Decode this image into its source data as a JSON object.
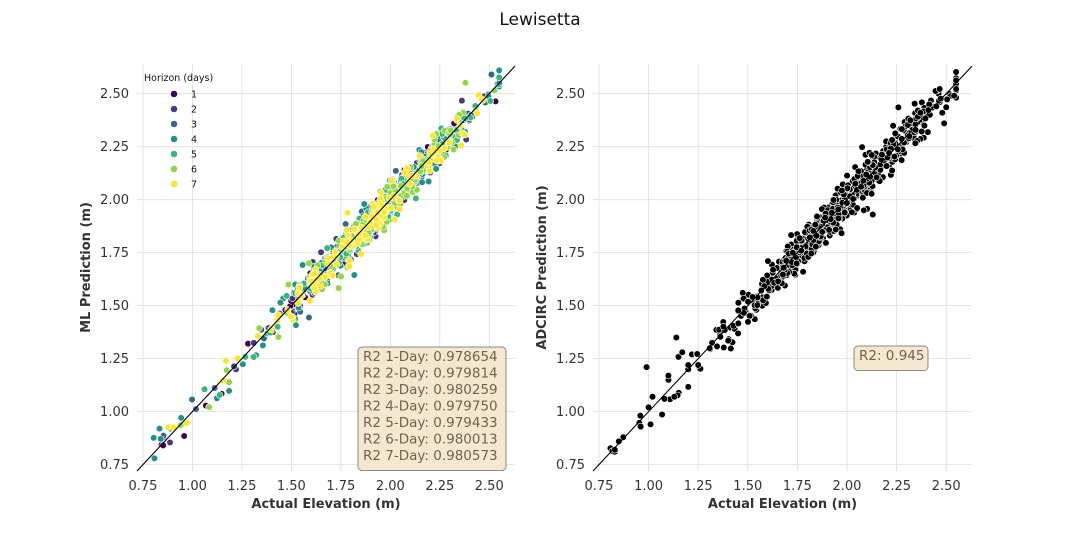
{
  "figure": {
    "title": "Lewisetta"
  },
  "chart_data": [
    {
      "type": "scatter",
      "title": "",
      "xlabel": "Actual Elevation (m)",
      "ylabel": "ML Prediction (m)",
      "xlim": [
        0.72,
        2.63
      ],
      "ylim": [
        0.72,
        2.64
      ],
      "xticks": [
        "0.75",
        "1.00",
        "1.25",
        "1.50",
        "1.75",
        "2.00",
        "2.25",
        "2.50"
      ],
      "yticks": [
        "0.75",
        "1.00",
        "1.25",
        "1.50",
        "1.75",
        "2.00",
        "2.25",
        "2.50"
      ],
      "grid": true,
      "reference_line": "y = x",
      "legend": {
        "title": "Horizon (days)",
        "placement": "top-left",
        "entries": [
          "1",
          "2",
          "3",
          "4",
          "5",
          "6",
          "7"
        ]
      },
      "series": [
        {
          "name": "1",
          "color": "#440154",
          "sigma": 0.035
        },
        {
          "name": "2",
          "color": "#443983",
          "sigma": 0.04
        },
        {
          "name": "3",
          "color": "#31688e",
          "sigma": 0.04
        },
        {
          "name": "4",
          "color": "#21918c",
          "sigma": 0.045
        },
        {
          "name": "5",
          "color": "#35b779",
          "sigma": 0.045
        },
        {
          "name": "6",
          "color": "#90d743",
          "sigma": 0.05
        },
        {
          "name": "7",
          "color": "#fde725",
          "sigma": 0.05
        }
      ],
      "annotation": {
        "placement": "bottom-right",
        "lines": [
          "R2 1-Day: 0.978654",
          "R2 2-Day: 0.979814",
          "R2 3-Day: 0.980259",
          "R2 4-Day: 0.979750",
          "R2 5-Day: 0.979433",
          "R2 6-Day: 0.980013",
          "R2 7-Day: 0.980573"
        ]
      }
    },
    {
      "type": "scatter",
      "title": "",
      "xlabel": "Actual Elevation (m)",
      "ylabel": "ADCIRC Prediction (m)",
      "xlim": [
        0.72,
        2.63
      ],
      "ylim": [
        0.72,
        2.64
      ],
      "xticks": [
        "0.75",
        "1.00",
        "1.25",
        "1.50",
        "1.75",
        "2.00",
        "2.25",
        "2.50"
      ],
      "yticks": [
        "0.75",
        "1.00",
        "1.25",
        "1.50",
        "1.75",
        "2.00",
        "2.25",
        "2.50"
      ],
      "grid": true,
      "reference_line": "y = x",
      "series": [
        {
          "name": "",
          "color": "#000000",
          "sigma": 0.045
        }
      ],
      "outliers": [
        [
          0.83,
          0.82
        ],
        [
          0.85,
          0.86
        ],
        [
          0.96,
          0.93
        ],
        [
          0.99,
          1.21
        ],
        [
          1.0,
          1.02
        ],
        [
          1.01,
          0.94
        ],
        [
          1.02,
          1.07
        ],
        [
          1.08,
          1.06
        ],
        [
          1.1,
          1.15
        ],
        [
          1.1,
          1.17
        ],
        [
          1.13,
          1.07
        ],
        [
          1.14,
          1.35
        ],
        [
          1.17,
          1.28
        ],
        [
          1.2,
          1.22
        ],
        [
          1.25,
          1.22
        ],
        [
          2.37,
          2.41
        ],
        [
          2.45,
          2.44
        ],
        [
          2.48,
          2.41
        ],
        [
          2.54,
          2.49
        ],
        [
          2.13,
          1.93
        ]
      ],
      "annotation": {
        "placement": "center-right",
        "lines": [
          "R2: 0.945"
        ]
      }
    }
  ]
}
